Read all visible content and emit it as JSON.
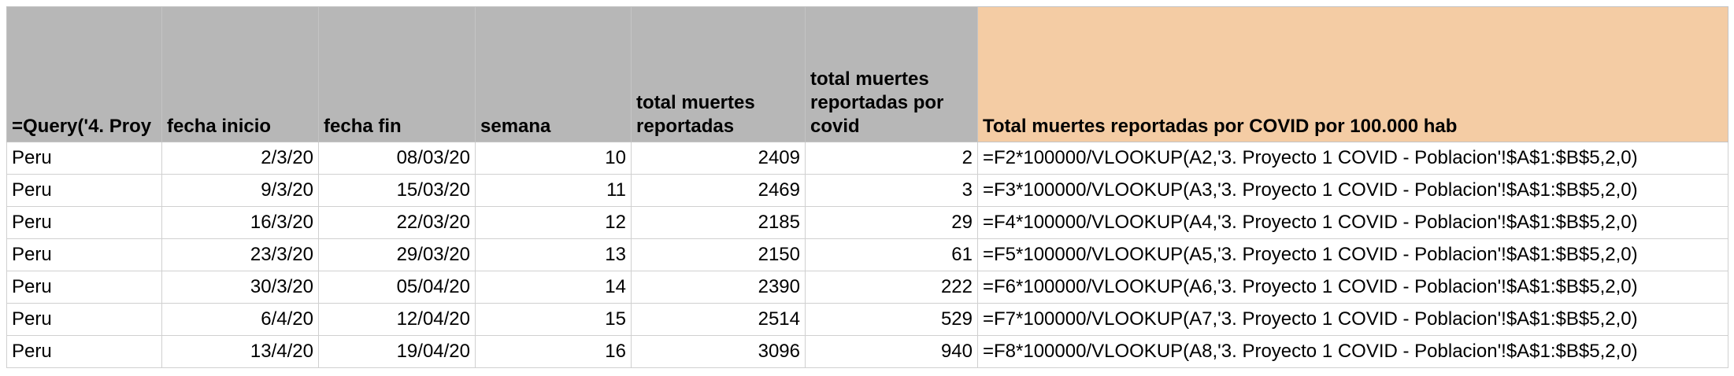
{
  "sheet": {
    "headers": [
      "=Query('4. Proy",
      "fecha inicio",
      "fecha fin",
      "semana",
      "total muertes reportadas",
      "total muertes reportadas por covid",
      "Total muertes reportadas por COVID por 100.000 hab"
    ],
    "rows": [
      [
        "Peru",
        "2/3/20",
        "08/03/20",
        "10",
        "2409",
        "2",
        "=F2*100000/VLOOKUP(A2,'3. Proyecto 1 COVID - Poblacion'!$A$1:$B$5,2,0)"
      ],
      [
        "Peru",
        "9/3/20",
        "15/03/20",
        "11",
        "2469",
        "3",
        "=F3*100000/VLOOKUP(A3,'3. Proyecto 1 COVID - Poblacion'!$A$1:$B$5,2,0)"
      ],
      [
        "Peru",
        "16/3/20",
        "22/03/20",
        "12",
        "2185",
        "29",
        "=F4*100000/VLOOKUP(A4,'3. Proyecto 1 COVID - Poblacion'!$A$1:$B$5,2,0)"
      ],
      [
        "Peru",
        "23/3/20",
        "29/03/20",
        "13",
        "2150",
        "61",
        "=F5*100000/VLOOKUP(A5,'3. Proyecto 1 COVID - Poblacion'!$A$1:$B$5,2,0)"
      ],
      [
        "Peru",
        "30/3/20",
        "05/04/20",
        "14",
        "2390",
        "222",
        "=F6*100000/VLOOKUP(A6,'3. Proyecto 1 COVID - Poblacion'!$A$1:$B$5,2,0)"
      ],
      [
        "Peru",
        "6/4/20",
        "12/04/20",
        "15",
        "2514",
        "529",
        "=F7*100000/VLOOKUP(A7,'3. Proyecto 1 COVID - Poblacion'!$A$1:$B$5,2,0)"
      ],
      [
        "Peru",
        "13/4/20",
        "19/04/20",
        "16",
        "3096",
        "940",
        "=F8*100000/VLOOKUP(A8,'3. Proyecto 1 COVID - Poblacion'!$A$1:$B$5,2,0)"
      ]
    ]
  },
  "colors": {
    "header_gray": "#b7b7b7",
    "header_accent": "#f4cca4",
    "gridline": "#d0d0d0"
  }
}
